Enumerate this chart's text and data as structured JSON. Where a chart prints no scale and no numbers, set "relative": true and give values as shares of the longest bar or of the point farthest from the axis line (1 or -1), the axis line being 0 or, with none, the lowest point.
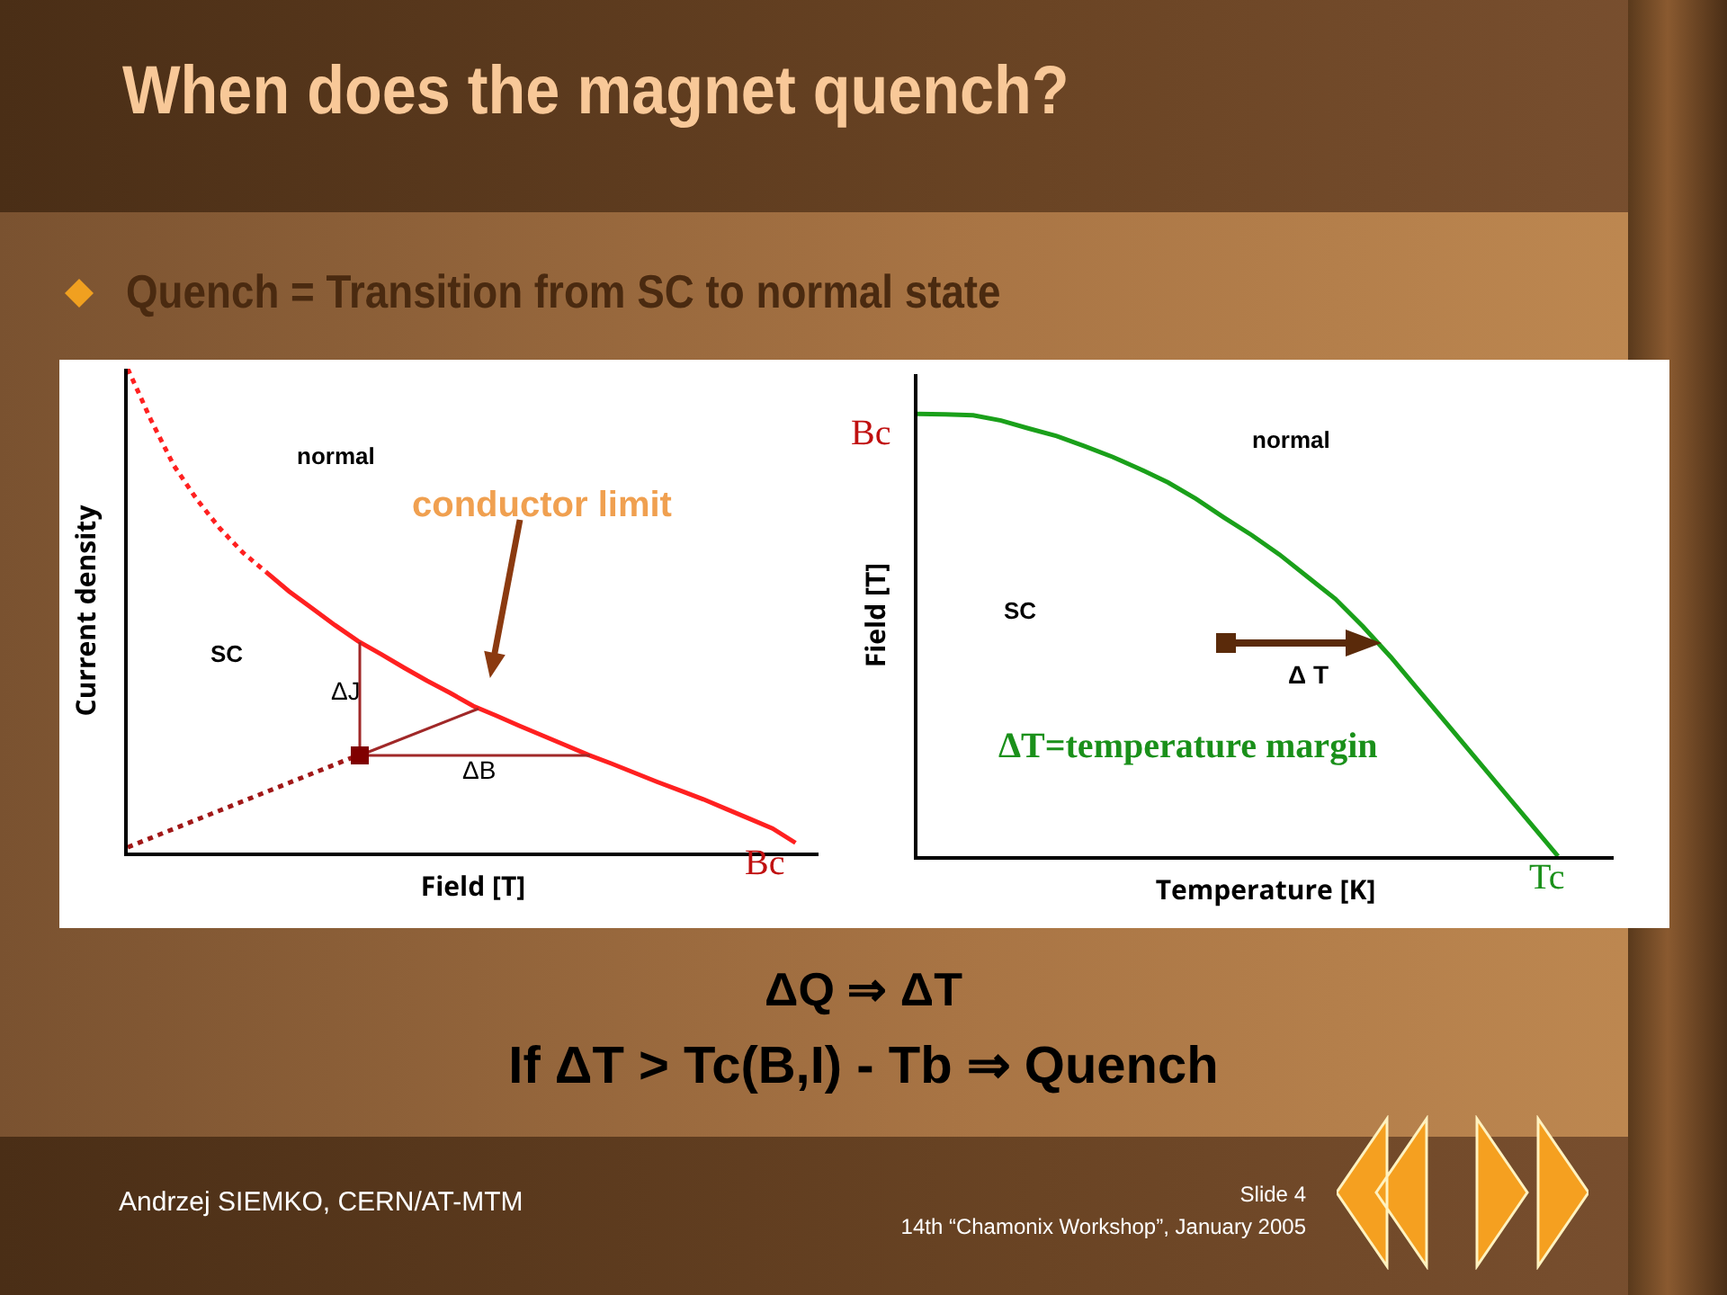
{
  "chart_data": [
    {
      "type": "line",
      "title": "When does the magnet quench?",
      "subtitle": "Quench = Transition from SC to normal state",
      "xlabel": "Field [T]",
      "ylabel": "Current density",
      "relative": true,
      "categories": [
        null,
        null,
        null,
        null,
        null,
        null,
        null,
        null,
        null,
        null,
        null,
        null,
        null,
        null,
        null,
        null,
        null,
        null,
        null,
        null,
        null,
        null,
        null,
        null,
        null,
        null,
        null,
        null,
        null,
        null,
        null
      ],
      "series": [
        {
          "color": "#ff2020",
          "line_style": "dotted",
          "values": [
            1.0,
            0.895,
            0.8,
            0.73,
            0.67,
            0.62,
            0.58,
            null,
            null,
            null,
            null,
            null,
            null,
            null,
            null,
            null,
            null,
            null,
            null,
            null,
            null,
            null,
            null,
            null,
            null,
            null,
            null,
            null,
            null,
            null,
            null
          ]
        },
        {
          "color": "#ff2020",
          "line_style": "solid",
          "values": [
            null,
            null,
            null,
            null,
            null,
            null,
            0.58,
            0.54,
            0.505,
            0.47,
            0.437,
            0.41,
            0.382,
            0.355,
            0.33,
            0.303,
            0.283,
            0.262,
            0.242,
            0.222,
            0.202,
            0.184,
            0.165,
            0.146,
            0.128,
            0.11,
            0.09,
            0.07,
            0.05,
            0.02,
            null
          ]
        },
        {
          "color": "#a01818",
          "line_style": "dotted",
          "values": [
            0.011,
            0.03,
            0.049,
            0.068,
            0.087,
            0.106,
            0.125,
            0.144,
            0.163,
            0.182,
            0.201,
            null,
            null,
            null,
            null,
            null,
            null,
            null,
            null,
            null,
            null,
            null,
            null,
            null,
            null,
            null,
            null,
            null,
            null,
            null,
            null
          ]
        }
      ],
      "annotations": [
        "normal",
        "SC",
        "conductor limit",
        "ΔJ",
        "ΔB",
        "Bc",
        "ΔQ ⇒ ΔT",
        "If  ΔT > Tc(B,I) - Tb ⇒ Quench",
        "Andrzej SIEMKO,  CERN/AT-MTM",
        "Slide 4",
        "14th “Chamonix Workshop”, January 2005"
      ]
    },
    {
      "type": "line",
      "xlabel": "Temperature [K]",
      "ylabel": "Field [T]",
      "relative": true,
      "categories": [
        null,
        null,
        null,
        null,
        null,
        null,
        null,
        null,
        null,
        null,
        null,
        null,
        null,
        null,
        null,
        null,
        null,
        null,
        null,
        null,
        null,
        null,
        null,
        null,
        null,
        null
      ],
      "series": [
        {
          "color": "#1aa01a",
          "line_style": "solid",
          "values": [
            1.0,
            0.999,
            0.997,
            0.985,
            0.967,
            0.95,
            0.927,
            0.903,
            0.875,
            0.845,
            0.808,
            0.766,
            0.726,
            0.682,
            0.632,
            0.582,
            0.519,
            0.45,
            0.375,
            0.3,
            0.225,
            0.15,
            0.075,
            0,
            null,
            null
          ]
        }
      ],
      "annotations": [
        "normal",
        "SC",
        "Δ T",
        "ΔT=temperature margin",
        "Bc",
        "Tc"
      ]
    }
  ]
}
